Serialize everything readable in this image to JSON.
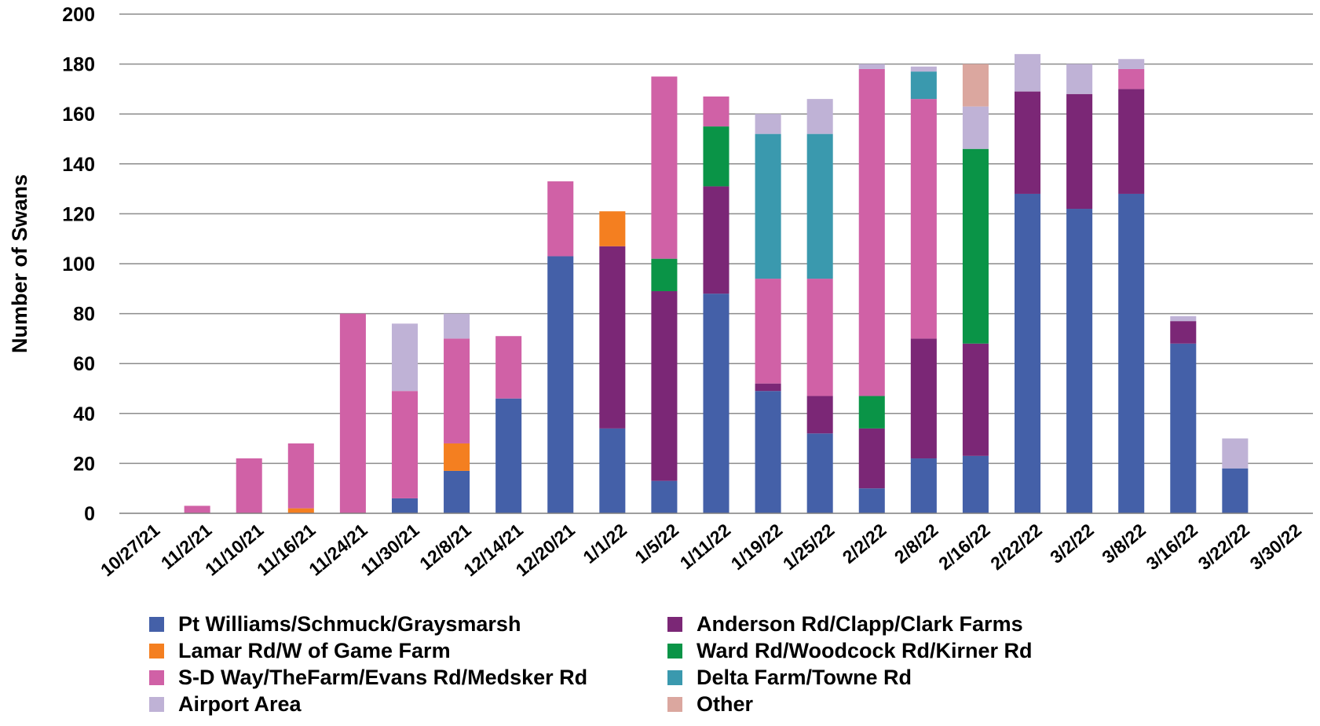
{
  "chart_data": {
    "type": "bar",
    "stacked": true,
    "ylabel": "Number of Swans",
    "xlabel": "",
    "ylim": [
      0,
      200
    ],
    "yticks": [
      0,
      20,
      40,
      60,
      80,
      100,
      120,
      140,
      160,
      180,
      200
    ],
    "grid": true,
    "legend_position": "bottom",
    "categories": [
      "10/27/21",
      "11/2/21",
      "11/10/21",
      "11/16/21",
      "11/24/21",
      "11/30/21",
      "12/8/21",
      "12/14/21",
      "12/20/21",
      "1/1/22",
      "1/5/22",
      "1/11/22",
      "1/19/22",
      "1/25/22",
      "2/2/22",
      "2/8/22",
      "2/16/22",
      "2/22/22",
      "3/2/22",
      "3/8/22",
      "3/16/22",
      "3/22/22",
      "3/30/22"
    ],
    "series": [
      {
        "name": "Pt Williams/Schmuck/Graysmarsh",
        "color": "#4460a8",
        "values": [
          0,
          0,
          0,
          0,
          0,
          6,
          17,
          46,
          103,
          34,
          13,
          88,
          49,
          32,
          10,
          22,
          23,
          128,
          122,
          128,
          68,
          18,
          0
        ]
      },
      {
        "name": "Anderson Rd/Clapp/Clark Farms",
        "color": "#7b2776",
        "values": [
          0,
          0,
          0,
          0,
          0,
          0,
          0,
          0,
          0,
          73,
          76,
          43,
          3,
          15,
          24,
          48,
          45,
          41,
          46,
          42,
          9,
          0,
          0
        ]
      },
      {
        "name": "Lamar Rd/W of Game Farm",
        "color": "#f47f20",
        "values": [
          0,
          0,
          0,
          2,
          0,
          0,
          11,
          0,
          0,
          14,
          0,
          0,
          0,
          0,
          0,
          0,
          0,
          0,
          0,
          0,
          0,
          0,
          0
        ]
      },
      {
        "name": "Ward Rd/Woodcock Rd/Kirner Rd",
        "color": "#0a9447",
        "values": [
          0,
          0,
          0,
          0,
          0,
          0,
          0,
          0,
          0,
          0,
          13,
          24,
          0,
          0,
          13,
          0,
          78,
          0,
          0,
          0,
          0,
          0,
          0
        ]
      },
      {
        "name": "S-D Way/TheFarm/Evans Rd/Medsker Rd",
        "color": "#d061a6",
        "values": [
          0,
          3,
          22,
          26,
          80,
          43,
          42,
          25,
          30,
          0,
          73,
          12,
          42,
          47,
          131,
          96,
          0,
          0,
          0,
          8,
          0,
          0,
          0
        ]
      },
      {
        "name": "Delta Farm/Towne Rd",
        "color": "#3a99ae",
        "values": [
          0,
          0,
          0,
          0,
          0,
          0,
          0,
          0,
          0,
          0,
          0,
          0,
          58,
          58,
          0,
          11,
          0,
          0,
          0,
          0,
          0,
          0,
          0
        ]
      },
      {
        "name": "Airport Area",
        "color": "#bfb2d6",
        "values": [
          0,
          0,
          0,
          0,
          0,
          27,
          10,
          0,
          0,
          0,
          0,
          0,
          8,
          14,
          2,
          2,
          17,
          15,
          12,
          4,
          2,
          12,
          0
        ]
      },
      {
        "name": "Other",
        "color": "#dba79f",
        "values": [
          0,
          0,
          0,
          0,
          0,
          0,
          0,
          0,
          0,
          0,
          0,
          0,
          0,
          0,
          0,
          0,
          17,
          0,
          0,
          0,
          0,
          0,
          0
        ]
      }
    ],
    "legend_order": [
      "Pt Williams/Schmuck/Graysmarsh",
      "Anderson Rd/Clapp/Clark Farms",
      "Lamar Rd/W of Game Farm",
      "Ward Rd/Woodcock Rd/Kirner Rd",
      "S-D Way/TheFarm/Evans Rd/Medsker Rd",
      "Delta Farm/Towne Rd",
      "Airport Area",
      "Other"
    ]
  }
}
